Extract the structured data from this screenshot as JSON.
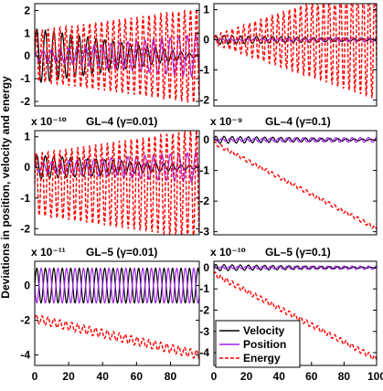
{
  "figure": {
    "ylabel": "Deviations in position, velocity and energy"
  },
  "colors": {
    "velocity": "#000000",
    "position": "#a020f0",
    "energy": "#ff0000"
  },
  "legend": {
    "placement": "bottom-left of bottom-right panel",
    "entries": [
      {
        "name": "Velocity",
        "color": "#000000",
        "style": "solid"
      },
      {
        "name": "Position",
        "color": "#a020f0",
        "style": "solid"
      },
      {
        "name": "Energy",
        "color": "#ff0000",
        "style": "dashed"
      }
    ]
  },
  "chart_data": [
    {
      "type": "line",
      "title": "",
      "scale_label": "",
      "xlim": [
        0,
        97
      ],
      "ylim": [
        -2.2,
        2.3
      ],
      "xticks": [],
      "xtick_labels": [],
      "yticks": [
        -2,
        -1,
        0,
        1,
        2
      ],
      "ytick_labels": [
        "-2",
        "-1",
        "0",
        "1",
        "2"
      ],
      "series": [
        {
          "name": "Velocity",
          "kind": "osc",
          "amp_start": 1.2,
          "amp_end": 0.05,
          "center": 0.0,
          "period": 5.0,
          "phase": 0.0
        },
        {
          "name": "Position",
          "kind": "osc",
          "amp_start": 0.2,
          "amp_end": 0.95,
          "center": 0.0,
          "period": 5.0,
          "phase": 1.57
        },
        {
          "name": "Energy",
          "kind": "osc",
          "amp_start": 1.1,
          "amp_end": 2.1,
          "center": 0.0,
          "period": 3.5,
          "phase": 0.0
        }
      ]
    },
    {
      "type": "line",
      "title": "",
      "scale_label": "",
      "xlim": [
        0,
        100
      ],
      "ylim": [
        -2.2,
        1.2
      ],
      "xticks": [],
      "xtick_labels": [],
      "yticks": [
        -2,
        -1,
        0,
        1
      ],
      "ytick_labels": [
        "-2",
        "-1",
        "0",
        "1"
      ],
      "series": [
        {
          "name": "Velocity",
          "kind": "osc",
          "amp_start": 0.15,
          "amp_end": 0.03,
          "center": 0.0,
          "period": 5.0,
          "phase": 0.0
        },
        {
          "name": "Position",
          "kind": "osc",
          "amp_start": 0.03,
          "amp_end": 0.08,
          "center": 0.0,
          "period": 5.0,
          "phase": 1.57
        },
        {
          "name": "Energy",
          "kind": "osc",
          "amp_start": 0.15,
          "amp_end": 2.0,
          "center": 0.0,
          "period": 3.5,
          "phase": 0.0
        }
      ]
    },
    {
      "type": "line",
      "title": "GL–4 (γ=0.01)",
      "scale_label": "x 10⁻¹⁰",
      "xlim": [
        0,
        97
      ],
      "ylim": [
        -2.2,
        1.2
      ],
      "xticks": [],
      "xtick_labels": [],
      "yticks": [
        -2,
        -1,
        0,
        1
      ],
      "ytick_labels": [
        "-2",
        "-1",
        "0",
        "1"
      ],
      "series": [
        {
          "name": "Velocity",
          "kind": "osc",
          "amp_start": 0.4,
          "amp_end": 0.05,
          "center": 0.0,
          "period": 5.0,
          "phase": 0.0
        },
        {
          "name": "Position",
          "kind": "osc",
          "amp_start": 0.15,
          "amp_end": 0.5,
          "center": 0.0,
          "period": 5.0,
          "phase": 1.57
        },
        {
          "name": "Energy",
          "kind": "osc",
          "amp_start": 1.0,
          "amp_end": 1.8,
          "center": -0.55,
          "period": 3.5,
          "phase": 0.0
        }
      ]
    },
    {
      "type": "line",
      "title": "GL–4 (γ=0.1)",
      "scale_label": "x 10⁻⁹",
      "xlim": [
        0,
        100
      ],
      "ylim": [
        -3.1,
        0.3
      ],
      "xticks": [],
      "xtick_labels": [],
      "yticks": [
        -3,
        -2,
        -1,
        0
      ],
      "ytick_labels": [
        "-3",
        "-2",
        "-1",
        "0"
      ],
      "series": [
        {
          "name": "Velocity",
          "kind": "osc",
          "amp_start": 0.12,
          "amp_end": 0.02,
          "center": 0.0,
          "period": 5.0,
          "phase": 0.0
        },
        {
          "name": "Position",
          "kind": "osc",
          "amp_start": 0.05,
          "amp_end": 0.08,
          "center": 0.0,
          "period": 5.0,
          "phase": 1.57
        },
        {
          "name": "Energy",
          "kind": "drift",
          "start": -0.1,
          "end": -2.9,
          "amp": 0.06,
          "period": 3.5
        }
      ]
    },
    {
      "type": "line",
      "title": "GL–5 (γ=0.01)",
      "scale_label": "x 10⁻¹¹",
      "xlim": [
        0,
        97
      ],
      "ylim": [
        -4.6,
        1.4
      ],
      "xticks": [
        0,
        20,
        40,
        60,
        80
      ],
      "xtick_labels": [
        "0",
        "20",
        "40",
        "60",
        "80"
      ],
      "yticks": [
        -4,
        -2,
        0
      ],
      "ytick_labels": [
        "-4",
        "-2",
        "0"
      ],
      "series": [
        {
          "name": "Velocity",
          "kind": "osc",
          "amp_start": 1.0,
          "amp_end": 1.0,
          "center": 0.0,
          "period": 5.0,
          "phase": 0.0
        },
        {
          "name": "Position",
          "kind": "osc",
          "amp_start": 1.0,
          "amp_end": 1.0,
          "center": 0.0,
          "period": 5.0,
          "phase": 3.14
        },
        {
          "name": "Energy",
          "kind": "drift",
          "start": -1.9,
          "end": -4.0,
          "amp": 0.25,
          "period": 3.5
        }
      ]
    },
    {
      "type": "line",
      "title": "GL–5 (γ=0.1)",
      "scale_label": "x 10⁻¹⁰",
      "xlim": [
        0,
        100
      ],
      "ylim": [
        -4.6,
        0.3
      ],
      "xticks": [
        0,
        20,
        40,
        60,
        80,
        100
      ],
      "xtick_labels": [
        "0",
        "20",
        "40",
        "60",
        "80",
        "100"
      ],
      "yticks": [
        -4,
        -3,
        -2,
        -1,
        0
      ],
      "ytick_labels": [
        "-4",
        "-3",
        "-2",
        "-1",
        "0"
      ],
      "series": [
        {
          "name": "Velocity",
          "kind": "osc",
          "amp_start": 0.15,
          "amp_end": 0.02,
          "center": 0.0,
          "period": 5.0,
          "phase": 0.0
        },
        {
          "name": "Position",
          "kind": "osc",
          "amp_start": 0.06,
          "amp_end": 0.08,
          "center": 0.0,
          "period": 5.0,
          "phase": 1.57
        },
        {
          "name": "Energy",
          "kind": "drift",
          "start": -0.3,
          "end": -4.3,
          "amp": 0.12,
          "period": 3.5
        }
      ]
    }
  ]
}
